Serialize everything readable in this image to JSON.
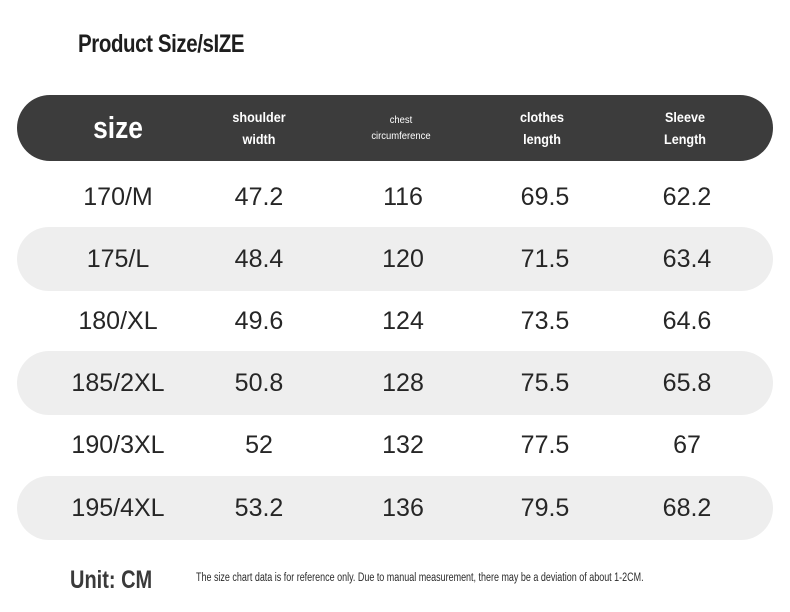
{
  "title": "Product Size/sIZE",
  "header": {
    "columns": [
      {
        "label": "size",
        "style": "size"
      },
      {
        "label": "shoulder\nwidth",
        "style": "normal"
      },
      {
        "label": "chest\ncircumference",
        "style": "small"
      },
      {
        "label": "clothes\nlength",
        "style": "normal"
      },
      {
        "label": "Sleeve\nLength",
        "style": "normal"
      }
    ],
    "background": "#3c3c3c",
    "text_color": "#ffffff"
  },
  "rows": [
    [
      "170/M",
      "47.2",
      "116",
      "69.5",
      "62.2"
    ],
    [
      "175/L",
      "48.4",
      "120",
      "71.5",
      "63.4"
    ],
    [
      "180/XL",
      "49.6",
      "124",
      "73.5",
      "64.6"
    ],
    [
      "185/2XL",
      "50.8",
      "128",
      "75.5",
      "65.8"
    ],
    [
      "190/3XL",
      "52",
      "132",
      "77.5",
      "67"
    ],
    [
      "195/4XL",
      "53.2",
      "136",
      "79.5",
      "68.2"
    ]
  ],
  "row_shade_color": "#eeeeee",
  "unit": "Unit: CM",
  "note": "The size chart data is for reference only. Due to manual measurement, there may be a deviation of about 1-2CM."
}
